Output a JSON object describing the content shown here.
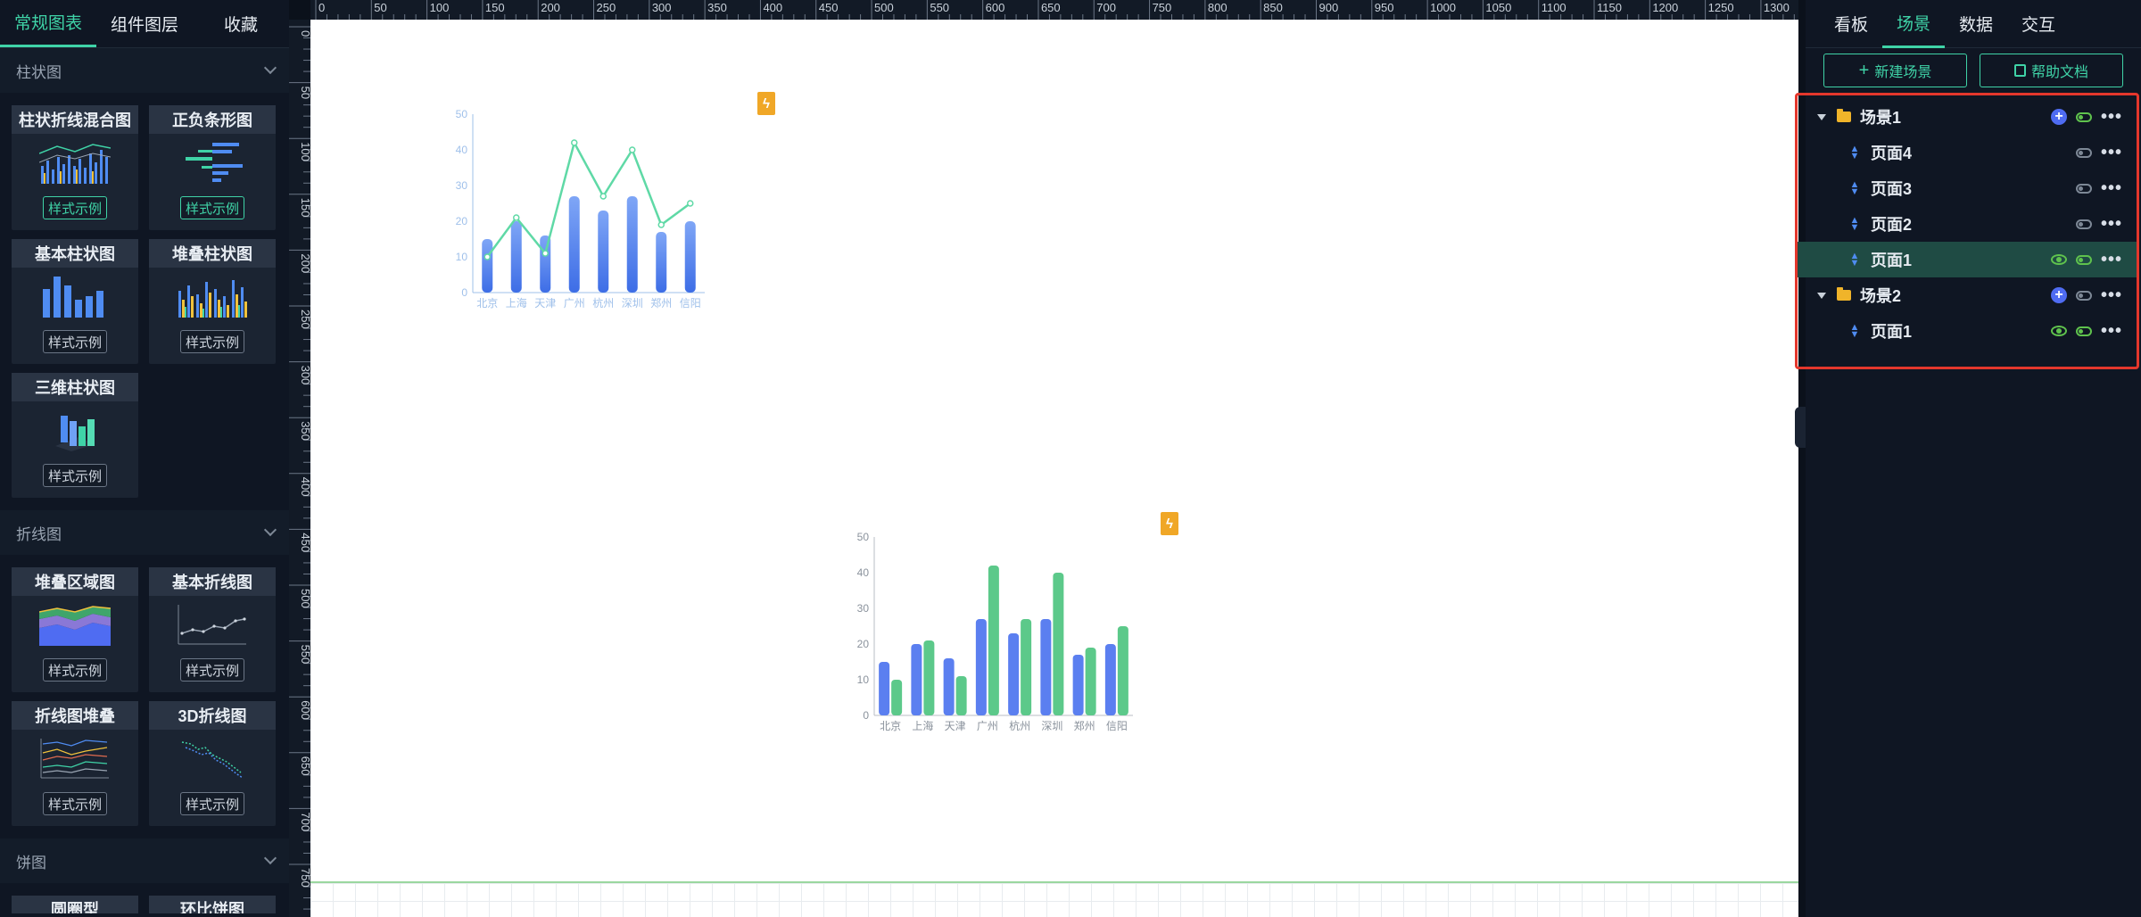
{
  "left_tabs": [
    "常规图表",
    "组件图层",
    "收藏"
  ],
  "sections": {
    "bar": {
      "title": "柱状图"
    },
    "line": {
      "title": "折线图"
    },
    "pie": {
      "title": "饼图"
    }
  },
  "cards": {
    "bar_line_mix": "柱状折线混合图",
    "pos_neg_bar": "正负条形图",
    "basic_bar": "基本柱状图",
    "stacked_bar": "堆叠柱状图",
    "bar_3d": "三维柱状图",
    "stacked_area": "堆叠区域图",
    "basic_line": "基本折线图",
    "line_stack": "折线图堆叠",
    "line_3d": "3D折线图",
    "pie_round": "圆圈型",
    "pie_ring": "环比饼图"
  },
  "sample_label": "样式示例",
  "ruler_top": [
    "0",
    "50",
    "100",
    "150",
    "200",
    "250",
    "300",
    "350",
    "400",
    "450",
    "500",
    "550",
    "600",
    "650",
    "700",
    "750",
    "800",
    "850",
    "900",
    "950",
    "1000",
    "1050",
    "1100",
    "1150",
    "1200",
    "1250",
    "1300"
  ],
  "ruler_left": [
    "0",
    "50",
    "100",
    "150",
    "200",
    "250",
    "300",
    "350",
    "400",
    "450",
    "500",
    "550",
    "600",
    "650",
    "700",
    "750"
  ],
  "right_tabs": [
    "看板",
    "场景",
    "数据",
    "交互"
  ],
  "actions": {
    "new_scene": "新建场景",
    "help_doc": "帮助文档"
  },
  "tree": {
    "scene1": "场景1",
    "scene1_pages": [
      "页面4",
      "页面3",
      "页面2",
      "页面1"
    ],
    "scene2": "场景2",
    "scene2_pages": [
      "页面1"
    ]
  },
  "colors": {
    "accent": "#3fd3a7",
    "blue": "#5b7ff0",
    "green": "#5cc98a",
    "selected": "#1f4b44",
    "highlight": "#e4372c"
  },
  "chart_data": [
    {
      "type": "bar",
      "categories": [
        "北京",
        "上海",
        "天津",
        "广州",
        "杭州",
        "深圳",
        "郑州",
        "信阳"
      ],
      "series": [
        {
          "values": [
            15,
            20,
            16,
            27,
            23,
            27,
            17,
            20
          ]
        },
        {
          "values": [
            10,
            21,
            11,
            42,
            27,
            40,
            19,
            25
          ],
          "render": "line"
        }
      ],
      "yticks": [
        "0",
        "10",
        "20",
        "30",
        "40",
        "50"
      ],
      "ylim": [
        0,
        50
      ]
    },
    {
      "type": "bar",
      "categories": [
        "北京",
        "上海",
        "天津",
        "广州",
        "杭州",
        "深圳",
        "郑州",
        "信阳"
      ],
      "series": [
        {
          "values": [
            15,
            20,
            16,
            27,
            23,
            27,
            17,
            20
          ]
        },
        {
          "values": [
            10,
            21,
            11,
            42,
            27,
            40,
            19,
            25
          ]
        }
      ],
      "yticks": [
        "0",
        "10",
        "20",
        "30",
        "40",
        "50"
      ],
      "ylim": [
        0,
        50
      ]
    }
  ]
}
